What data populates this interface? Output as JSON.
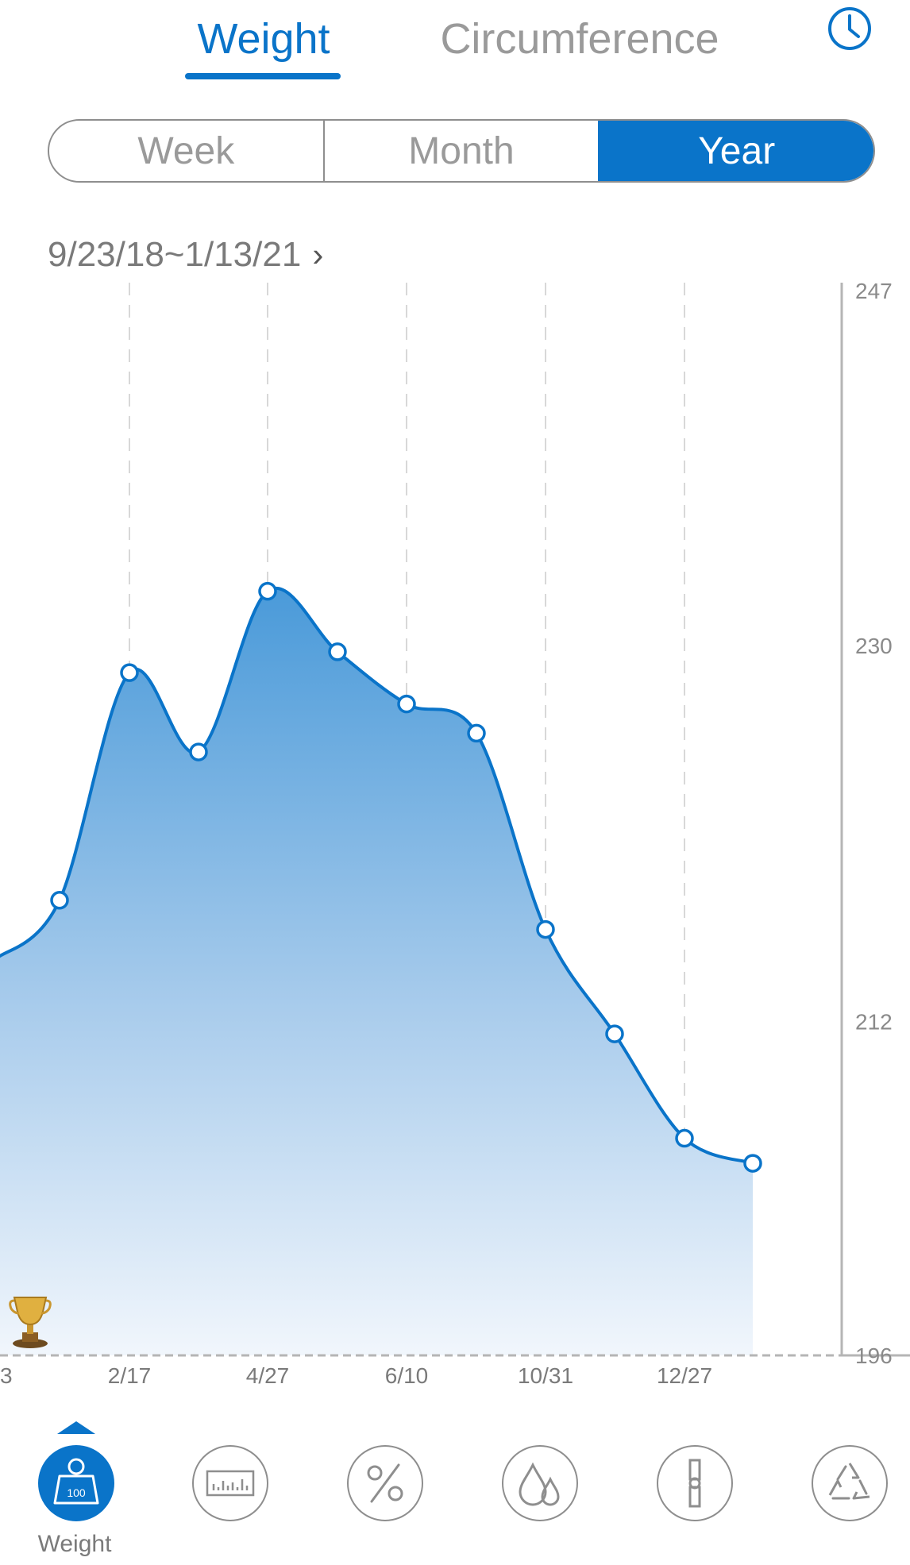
{
  "tabs": {
    "weight": "Weight",
    "circumference": "Circumference"
  },
  "icons": {
    "history": "clock-icon"
  },
  "segment": {
    "week": "Week",
    "month": "Month",
    "year": "Year",
    "selected": "Year"
  },
  "date_range": {
    "label": "9/23/18~1/13/21",
    "chevron": "›"
  },
  "chart_data": {
    "type": "area",
    "x_tick_labels": [
      "3",
      "2/17",
      "4/27",
      "6/10",
      "10/31",
      "12/27"
    ],
    "y_tick_labels": [
      "247",
      "230",
      "212",
      "196"
    ],
    "ylim": [
      196,
      247
    ],
    "series": [
      {
        "values": [
          215,
          217.8,
          228.7,
          224.9,
          232.6,
          229.7,
          227.2,
          225.8,
          216.4,
          211.4,
          206.4,
          205.2
        ]
      }
    ],
    "grid": "vertical dashed",
    "goal_marker": "trophy-icon"
  },
  "colors": {
    "accent": "#0a74c9",
    "muted": "#9a9a9a"
  },
  "bottom_nav": {
    "items": [
      {
        "name": "Weight",
        "icon": "weight-scale-icon",
        "badge": "100"
      },
      {
        "icon": "bmi-ruler-icon"
      },
      {
        "icon": "body-fat-percent-icon"
      },
      {
        "icon": "body-water-icon"
      },
      {
        "icon": "bone-mass-icon"
      },
      {
        "icon": "metabolism-recycle-icon"
      }
    ]
  }
}
